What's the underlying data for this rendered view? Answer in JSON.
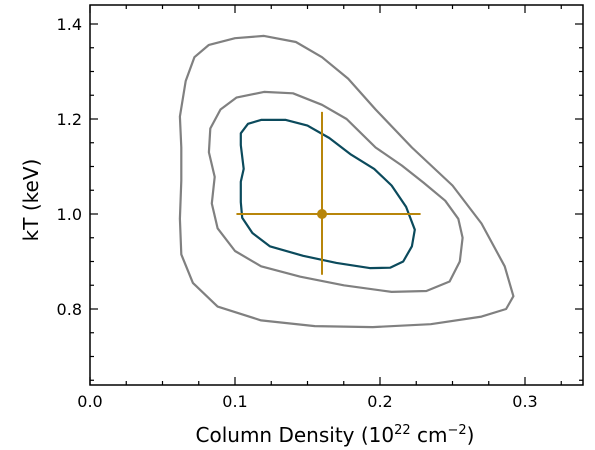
{
  "chart_data": {
    "type": "scatter",
    "xlabel": "Column Density (10",
    "xlabel_exponent": "22",
    "xlabel_unit": " cm",
    "xlabel_unit_exponent": "−2",
    "xlabel_close": ")",
    "ylabel": "kT (keV)",
    "xlim": [
      0.0,
      0.34
    ],
    "ylim": [
      0.64,
      1.44
    ],
    "xticks": [
      0.0,
      0.1,
      0.2,
      0.3
    ],
    "xtick_labels": [
      "0.0",
      "0.1",
      "0.2",
      "0.3"
    ],
    "yticks": [
      0.8,
      1.0,
      1.2,
      1.4
    ],
    "ytick_labels": [
      "0.8",
      "1.0",
      "1.2",
      "1.4"
    ],
    "grid": false,
    "best_fit": {
      "x": 0.16,
      "y": 1.0,
      "x_err": [
        0.101,
        0.228
      ],
      "y_err": [
        0.872,
        1.215
      ],
      "color": "#b8860b"
    },
    "contours": [
      {
        "level": "inner",
        "color": "#0b4a5c",
        "points": [
          [
            0.109,
            1.19
          ],
          [
            0.118,
            1.198
          ],
          [
            0.135,
            1.198
          ],
          [
            0.15,
            1.186
          ],
          [
            0.165,
            1.16
          ],
          [
            0.18,
            1.125
          ],
          [
            0.196,
            1.095
          ],
          [
            0.208,
            1.06
          ],
          [
            0.218,
            1.015
          ],
          [
            0.224,
            0.967
          ],
          [
            0.222,
            0.932
          ],
          [
            0.216,
            0.9
          ],
          [
            0.207,
            0.887
          ],
          [
            0.193,
            0.886
          ],
          [
            0.17,
            0.897
          ],
          [
            0.147,
            0.912
          ],
          [
            0.124,
            0.932
          ],
          [
            0.112,
            0.96
          ],
          [
            0.105,
            0.992
          ],
          [
            0.104,
            1.025
          ],
          [
            0.104,
            1.068
          ],
          [
            0.106,
            1.095
          ],
          [
            0.104,
            1.145
          ],
          [
            0.104,
            1.17
          ],
          [
            0.109,
            1.19
          ]
        ]
      },
      {
        "level": "middle",
        "color": "#808080",
        "points": [
          [
            0.083,
            1.18
          ],
          [
            0.09,
            1.22
          ],
          [
            0.101,
            1.245
          ],
          [
            0.12,
            1.257
          ],
          [
            0.14,
            1.254
          ],
          [
            0.16,
            1.23
          ],
          [
            0.177,
            1.2
          ],
          [
            0.197,
            1.14
          ],
          [
            0.215,
            1.102
          ],
          [
            0.23,
            1.066
          ],
          [
            0.245,
            1.028
          ],
          [
            0.254,
            0.99
          ],
          [
            0.257,
            0.95
          ],
          [
            0.255,
            0.9
          ],
          [
            0.248,
            0.858
          ],
          [
            0.232,
            0.838
          ],
          [
            0.208,
            0.836
          ],
          [
            0.175,
            0.85
          ],
          [
            0.145,
            0.868
          ],
          [
            0.118,
            0.89
          ],
          [
            0.1,
            0.922
          ],
          [
            0.088,
            0.97
          ],
          [
            0.084,
            1.022
          ],
          [
            0.086,
            1.078
          ],
          [
            0.082,
            1.13
          ],
          [
            0.083,
            1.18
          ]
        ]
      },
      {
        "level": "outer",
        "color": "#808080",
        "points": [
          [
            0.066,
            1.28
          ],
          [
            0.072,
            1.33
          ],
          [
            0.082,
            1.356
          ],
          [
            0.1,
            1.37
          ],
          [
            0.12,
            1.375
          ],
          [
            0.142,
            1.362
          ],
          [
            0.16,
            1.33
          ],
          [
            0.178,
            1.285
          ],
          [
            0.197,
            1.22
          ],
          [
            0.222,
            1.14
          ],
          [
            0.25,
            1.06
          ],
          [
            0.27,
            0.98
          ],
          [
            0.286,
            0.89
          ],
          [
            0.292,
            0.827
          ],
          [
            0.287,
            0.8
          ],
          [
            0.27,
            0.784
          ],
          [
            0.235,
            0.768
          ],
          [
            0.195,
            0.762
          ],
          [
            0.155,
            0.764
          ],
          [
            0.118,
            0.776
          ],
          [
            0.088,
            0.805
          ],
          [
            0.071,
            0.855
          ],
          [
            0.063,
            0.915
          ],
          [
            0.062,
            0.99
          ],
          [
            0.063,
            1.07
          ],
          [
            0.063,
            1.14
          ],
          [
            0.062,
            1.205
          ],
          [
            0.066,
            1.28
          ]
        ]
      }
    ]
  }
}
